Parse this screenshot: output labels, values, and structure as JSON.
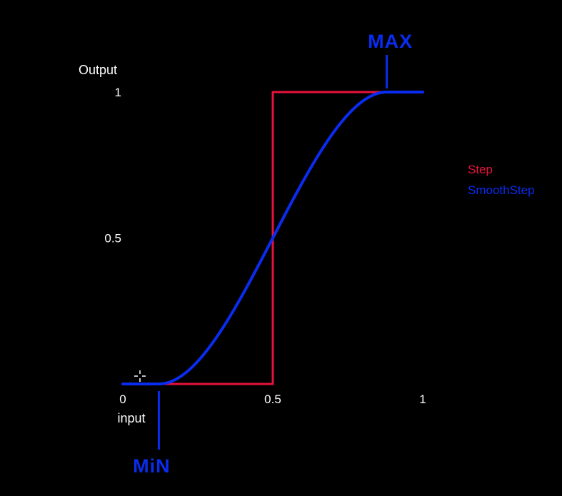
{
  "chart_data": {
    "type": "line",
    "ylabel": "Output",
    "xlabel": "input",
    "xlim": [
      0,
      1
    ],
    "ylim": [
      0,
      1
    ],
    "x_ticks": [
      {
        "value": 0,
        "label": "0"
      },
      {
        "value": 0.5,
        "label": "0.5"
      },
      {
        "value": 1,
        "label": "1"
      }
    ],
    "y_ticks": [
      {
        "value": 0.5,
        "label": "0.5"
      },
      {
        "value": 1,
        "label": "1"
      }
    ],
    "grid": false,
    "legend_position": "right",
    "series": [
      {
        "name": "Step",
        "color": "#e8123c",
        "kind": "step",
        "x": [
          0,
          0.5,
          0.5,
          1
        ],
        "y": [
          0,
          0,
          1,
          1
        ]
      },
      {
        "name": "SmoothStep",
        "color": "#0a2cf0",
        "kind": "smoothstep",
        "edge0": 0.12,
        "edge1": 0.88,
        "x": [
          0,
          0.12,
          0.2,
          0.3,
          0.4,
          0.5,
          0.6,
          0.7,
          0.8,
          0.88,
          1
        ],
        "y": [
          0,
          0,
          0.03,
          0.17,
          0.38,
          0.5,
          0.62,
          0.83,
          0.97,
          1,
          1
        ]
      }
    ],
    "annotations": [
      {
        "text": "MAX",
        "x": 0.88,
        "y": 1,
        "color": "#0a2cf0",
        "side": "above"
      },
      {
        "text": "MiN",
        "x": 0.12,
        "y": 0,
        "color": "#0a2cf0",
        "side": "below"
      }
    ]
  }
}
